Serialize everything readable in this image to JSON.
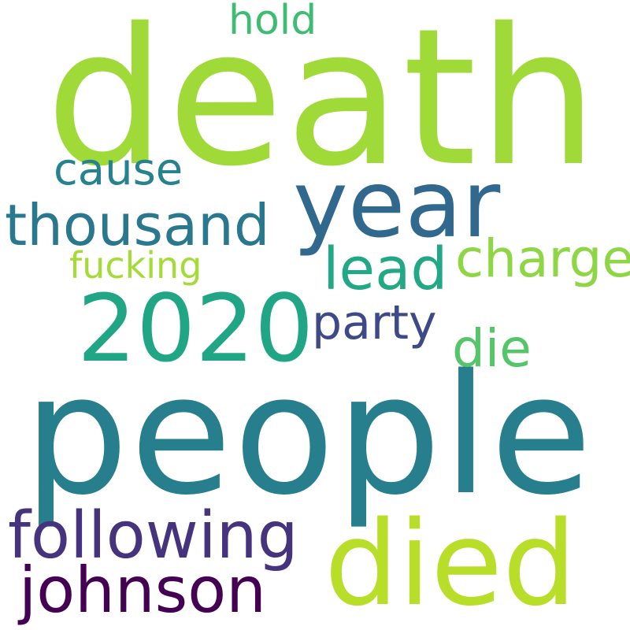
{
  "words": [
    {
      "id": "death",
      "text": "death",
      "color": "#a0da39"
    },
    {
      "id": "people",
      "text": "people",
      "color": "#277f8e"
    },
    {
      "id": "year",
      "text": "year",
      "color": "#31688e"
    },
    {
      "id": "2020",
      "text": "2020",
      "color": "#21a685"
    },
    {
      "id": "died",
      "text": "died",
      "color": "#b8de29"
    },
    {
      "id": "following",
      "text": "following",
      "color": "#46337e"
    },
    {
      "id": "johnson",
      "text": "johnson",
      "color": "#440154"
    },
    {
      "id": "thousand",
      "text": "thousand",
      "color": "#2a788e"
    },
    {
      "id": "lead",
      "text": "lead",
      "color": "#22a884"
    },
    {
      "id": "charge",
      "text": "charge",
      "color": "#8ed645"
    },
    {
      "id": "party",
      "text": "party",
      "color": "#3e4989"
    },
    {
      "id": "die",
      "text": "die",
      "color": "#54c568"
    },
    {
      "id": "cause",
      "text": "cause",
      "color": "#26828e"
    },
    {
      "id": "hold",
      "text": "hold",
      "color": "#3fbc73"
    },
    {
      "id": "fucking",
      "text": "fucking",
      "color": "#a5db36"
    }
  ]
}
